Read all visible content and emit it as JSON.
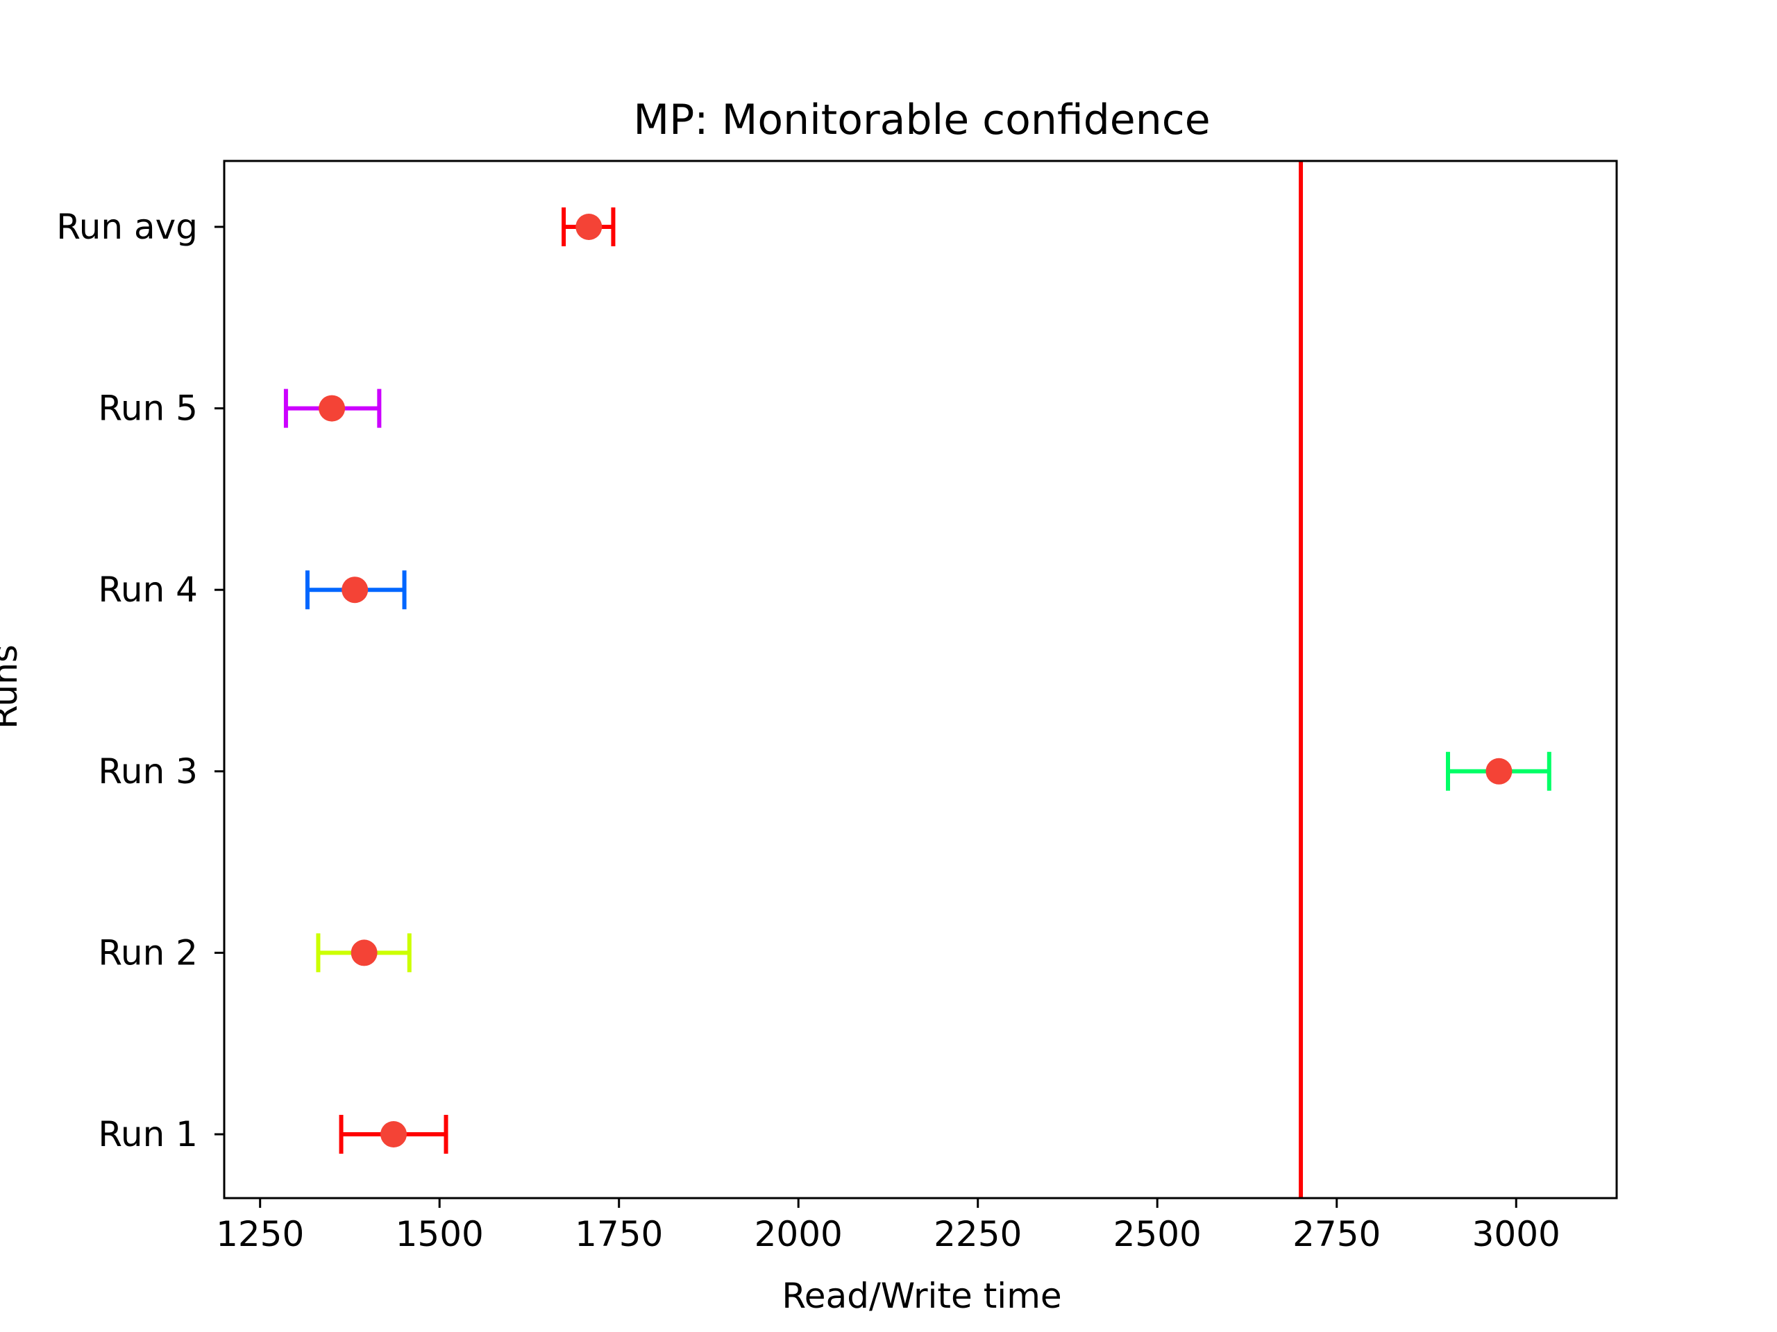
{
  "chart_data": {
    "type": "errorbar",
    "title": "MP: Monitorable confidence",
    "xlabel": "Read/Write time",
    "ylabel": "Runs",
    "xlim": [
      1200,
      3140
    ],
    "x_ticks": [
      1250,
      1500,
      1750,
      2000,
      2250,
      2500,
      2750,
      3000
    ],
    "categories": [
      "Run 1",
      "Run 2",
      "Run 3",
      "Run 4",
      "Run 5",
      "Run avg"
    ],
    "points": [
      {
        "label": "Run 1",
        "mean": 1436,
        "low": 1363,
        "high": 1509,
        "bar_color": "#ff0000"
      },
      {
        "label": "Run 2",
        "mean": 1395,
        "low": 1331,
        "high": 1458,
        "bar_color": "#ccff00"
      },
      {
        "label": "Run 3",
        "mean": 2976,
        "low": 2905,
        "high": 3046,
        "bar_color": "#00ff66"
      },
      {
        "label": "Run 4",
        "mean": 1382,
        "low": 1316,
        "high": 1451,
        "bar_color": "#0066ff"
      },
      {
        "label": "Run 5",
        "mean": 1350,
        "low": 1286,
        "high": 1416,
        "bar_color": "#cc00ff"
      },
      {
        "label": "Run avg",
        "mean": 1708,
        "low": 1673,
        "high": 1742,
        "bar_color": "#ff0000"
      }
    ],
    "point_color": "#f44336",
    "reference_line": {
      "x": 2700,
      "color": "#ff0000"
    },
    "grid": false,
    "legend": "none"
  }
}
